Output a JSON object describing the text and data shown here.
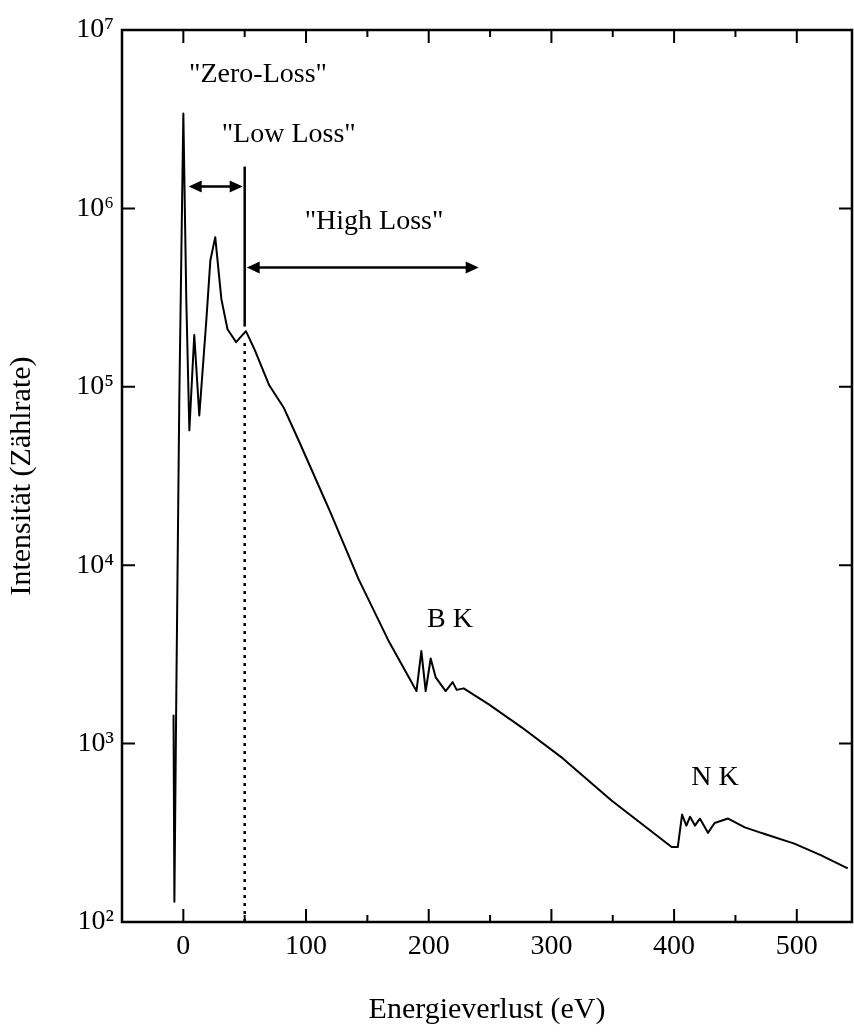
{
  "chart_data": {
    "type": "line",
    "xlabel": "Energieverlust (eV)",
    "ylabel": "Intensität (Zählrate)",
    "log": "y",
    "grid": false,
    "legend": false,
    "marker": "none",
    "line_style": "solid",
    "xlim": [
      -50,
      545
    ],
    "ylim": [
      100,
      10000000
    ],
    "xticks": [
      0,
      {
        "value": 50,
        "label": null
      },
      100,
      {
        "value": 150,
        "label": null
      },
      200,
      {
        "value": 250,
        "label": null
      },
      300,
      {
        "value": 350,
        "label": null
      },
      400,
      {
        "value": 450,
        "label": null
      },
      500
    ],
    "yticks": [
      {
        "value": 100,
        "label": "10²"
      },
      {
        "value": 1000,
        "label": "10³"
      },
      {
        "value": 10000,
        "label": "10⁴"
      },
      {
        "value": 100000,
        "label": "10⁵"
      },
      {
        "value": 1000000,
        "label": "10⁶"
      },
      {
        "value": 10000000,
        "label": "10⁷"
      }
    ],
    "ref_lines": [
      {
        "axis": "x",
        "value": 50,
        "line_style": "dotted"
      }
    ],
    "annotations": [
      "\"Zero-Loss\"",
      {
        "text": "\"Low Loss\"",
        "x": 50,
        "y": 205000
      },
      "\"High Loss\"",
      "B K",
      "N K"
    ],
    "series": [
      {
        "color": "#000000",
        "x": [
          -8,
          -7.3,
          -5.7,
          -3.3,
          0,
          2.4,
          4.9,
          8.9,
          13,
          18.7,
          22,
          26,
          31,
          36,
          43,
          51,
          58,
          70,
          82,
          94,
          119,
          143,
          167,
          190,
          194,
          197.5,
          201.6,
          205.7,
          213.8,
          219.5,
          222.8,
          228.5,
          249,
          276,
          308,
          349,
          398,
          403,
          406.5,
          410,
          413,
          417,
          421,
          427.6,
          433,
          444,
          457.7,
          471,
          498,
          519.5,
          541.5
        ],
        "values": [
          1450,
          130,
          2000,
          85000,
          3400000,
          310000,
          57000,
          195000,
          69000,
          234000,
          510000,
          690000,
          310000,
          210000,
          178000,
          205000,
          162000,
          102000,
          76000,
          50000,
          20400,
          8300,
          3800,
          1970,
          3300,
          1970,
          3000,
          2350,
          1970,
          2210,
          2000,
          2040,
          1660,
          1230,
          840,
          480,
          263,
          263,
          400,
          347,
          389,
          347,
          380,
          316,
          359,
          380,
          339,
          316,
          275,
          237,
          200
        ]
      }
    ]
  }
}
